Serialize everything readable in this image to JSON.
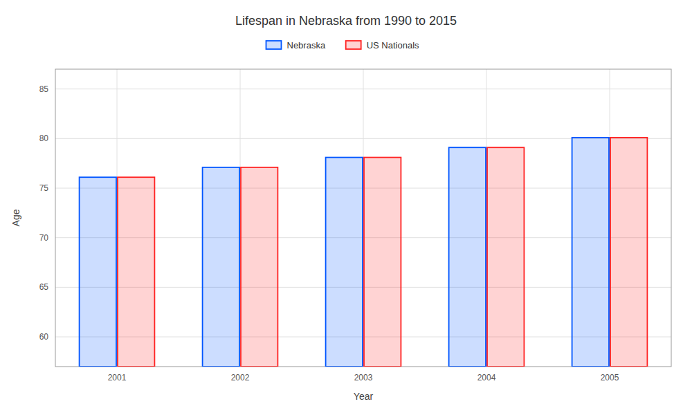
{
  "chart_data": {
    "type": "bar",
    "title": "Lifespan in Nebraska from 1990 to 2015",
    "xlabel": "Year",
    "ylabel": "Age",
    "categories": [
      "2001",
      "2002",
      "2003",
      "2004",
      "2005"
    ],
    "series": [
      {
        "name": "Nebraska",
        "color": "#0055ff",
        "values": [
          76.1,
          77.1,
          78.1,
          79.1,
          80.1
        ]
      },
      {
        "name": "US Nationals",
        "color": "#ff2222",
        "values": [
          76.1,
          77.1,
          78.1,
          79.1,
          80.1
        ]
      }
    ],
    "ylim": [
      57,
      87
    ],
    "yticks": [
      60,
      65,
      70,
      75,
      80,
      85
    ],
    "grid": true,
    "legend": "top"
  }
}
